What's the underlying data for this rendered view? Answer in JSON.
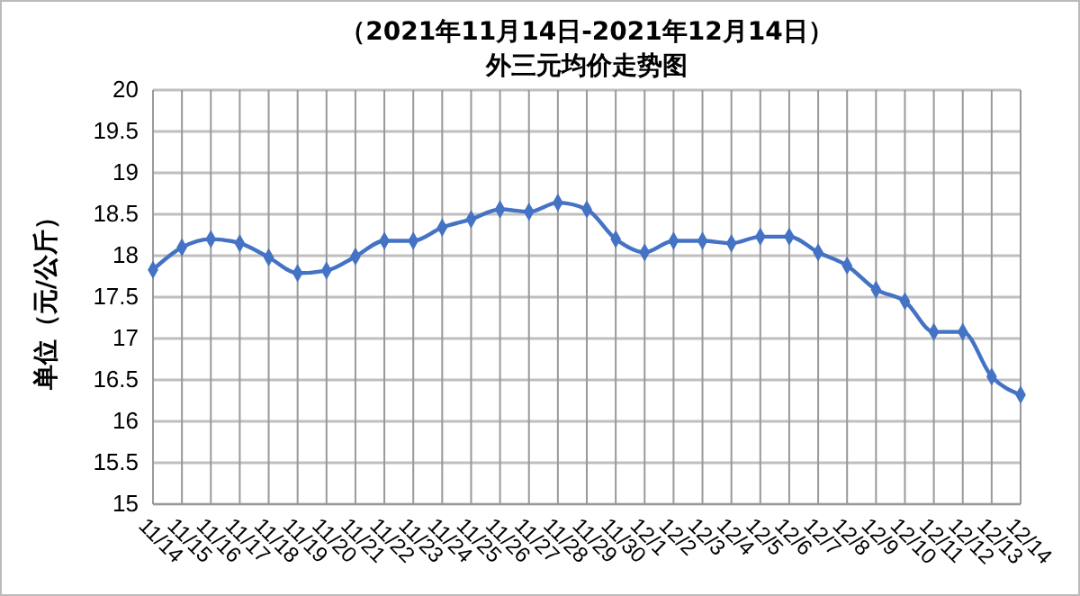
{
  "chart_data": {
    "type": "line",
    "title": "（2021年11月14日-2021年12月14日）",
    "subtitle": "外三元均价走势图",
    "ylabel": "单位（元/公斤）",
    "categories": [
      "11/14",
      "11/15",
      "11/16",
      "11/17",
      "11/18",
      "11/19",
      "11/20",
      "11/21",
      "11/22",
      "11/23",
      "11/24",
      "11/25",
      "11/26",
      "11/27",
      "11/28",
      "11/29",
      "11/30",
      "12/1",
      "12/2",
      "12/3",
      "12/4",
      "12/5",
      "12/6",
      "12/7",
      "12/8",
      "12/9",
      "12/10",
      "12/11",
      "12/12",
      "12/13",
      "12/14"
    ],
    "series": [
      {
        "color": "#4472c4",
        "values": [
          17.83,
          18.1,
          18.2,
          18.15,
          17.98,
          17.79,
          17.82,
          17.99,
          18.18,
          18.18,
          18.34,
          18.44,
          18.56,
          18.53,
          18.64,
          18.56,
          18.2,
          18.04,
          18.18,
          18.18,
          18.15,
          18.23,
          18.23,
          18.04,
          17.88,
          17.59,
          17.45,
          17.08,
          17.08,
          16.54,
          16.32
        ]
      }
    ],
    "ylim": [
      15,
      20
    ],
    "yticks": [
      15,
      15.5,
      16,
      16.5,
      17,
      17.5,
      18,
      18.5,
      19,
      19.5,
      20
    ],
    "grid": true,
    "marker": "diamond",
    "line_style": "solid"
  }
}
